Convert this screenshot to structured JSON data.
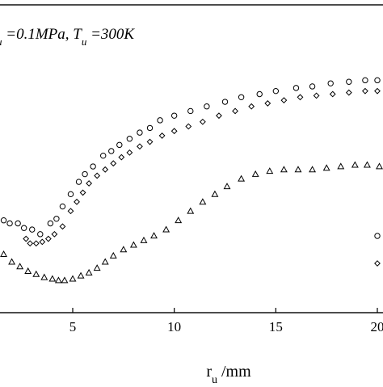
{
  "chart_data": {
    "type": "scatter",
    "annotation": {
      "parts": [
        {
          "text": "u",
          "sub": true
        },
        {
          "text": " =0.1MPa, T",
          "sub": false
        },
        {
          "text": "u",
          "sub": true
        },
        {
          "text": " =300K",
          "sub": false
        }
      ]
    },
    "xlabel": {
      "main": "r",
      "sub": "u",
      "suffix": " /mm"
    },
    "ylabel": "",
    "xlim": [
      1.5,
      20.3
    ],
    "ylim": [
      0,
      1
    ],
    "x_ticks": [
      5,
      10,
      15,
      20
    ],
    "x_tick_labels": [
      "5",
      "10",
      "15",
      "20"
    ],
    "grid": false,
    "legend": {
      "location": "right",
      "markers": [
        "circle",
        "diamond"
      ]
    },
    "series": [
      {
        "marker": "circle",
        "color": "#000000",
        "points": [
          [
            1.6,
            0.3
          ],
          [
            1.9,
            0.29
          ],
          [
            2.3,
            0.29
          ],
          [
            2.6,
            0.275
          ],
          [
            3.0,
            0.27
          ],
          [
            3.4,
            0.255
          ],
          [
            3.9,
            0.29
          ],
          [
            4.2,
            0.305
          ],
          [
            4.5,
            0.345
          ],
          [
            4.9,
            0.385
          ],
          [
            5.3,
            0.425
          ],
          [
            5.6,
            0.45
          ],
          [
            6.0,
            0.475
          ],
          [
            6.5,
            0.51
          ],
          [
            6.9,
            0.525
          ],
          [
            7.3,
            0.545
          ],
          [
            7.8,
            0.565
          ],
          [
            8.3,
            0.585
          ],
          [
            8.8,
            0.6
          ],
          [
            9.3,
            0.625
          ],
          [
            10.0,
            0.64
          ],
          [
            10.8,
            0.655
          ],
          [
            11.6,
            0.67
          ],
          [
            12.5,
            0.685
          ],
          [
            13.3,
            0.7
          ],
          [
            14.2,
            0.71
          ],
          [
            15.0,
            0.72
          ],
          [
            16.0,
            0.73
          ],
          [
            16.8,
            0.735
          ],
          [
            17.7,
            0.745
          ],
          [
            18.6,
            0.75
          ],
          [
            19.4,
            0.755
          ],
          [
            20.0,
            0.755
          ]
        ]
      },
      {
        "marker": "diamond",
        "color": "#000000",
        "points": [
          [
            2.7,
            0.24
          ],
          [
            2.9,
            0.225
          ],
          [
            3.2,
            0.225
          ],
          [
            3.5,
            0.23
          ],
          [
            3.8,
            0.24
          ],
          [
            4.1,
            0.255
          ],
          [
            4.5,
            0.28
          ],
          [
            4.9,
            0.33
          ],
          [
            5.2,
            0.36
          ],
          [
            5.5,
            0.39
          ],
          [
            5.8,
            0.42
          ],
          [
            6.2,
            0.445
          ],
          [
            6.6,
            0.465
          ],
          [
            7.0,
            0.485
          ],
          [
            7.4,
            0.505
          ],
          [
            7.8,
            0.52
          ],
          [
            8.3,
            0.54
          ],
          [
            8.8,
            0.555
          ],
          [
            9.4,
            0.575
          ],
          [
            10.0,
            0.59
          ],
          [
            10.7,
            0.605
          ],
          [
            11.4,
            0.62
          ],
          [
            12.2,
            0.64
          ],
          [
            13.0,
            0.655
          ],
          [
            13.8,
            0.67
          ],
          [
            14.6,
            0.68
          ],
          [
            15.4,
            0.69
          ],
          [
            16.2,
            0.7
          ],
          [
            17.0,
            0.705
          ],
          [
            17.8,
            0.71
          ],
          [
            18.6,
            0.715
          ],
          [
            19.4,
            0.72
          ],
          [
            20.0,
            0.72
          ]
        ]
      },
      {
        "marker": "triangle",
        "color": "#000000",
        "points": [
          [
            1.6,
            0.19
          ],
          [
            2.0,
            0.165
          ],
          [
            2.4,
            0.15
          ],
          [
            2.8,
            0.135
          ],
          [
            3.2,
            0.125
          ],
          [
            3.6,
            0.115
          ],
          [
            4.0,
            0.11
          ],
          [
            4.3,
            0.105
          ],
          [
            4.6,
            0.105
          ],
          [
            5.0,
            0.11
          ],
          [
            5.4,
            0.12
          ],
          [
            5.8,
            0.13
          ],
          [
            6.2,
            0.145
          ],
          [
            6.6,
            0.165
          ],
          [
            7.0,
            0.185
          ],
          [
            7.5,
            0.205
          ],
          [
            8.0,
            0.22
          ],
          [
            8.5,
            0.235
          ],
          [
            9.0,
            0.25
          ],
          [
            9.6,
            0.27
          ],
          [
            10.2,
            0.3
          ],
          [
            10.8,
            0.33
          ],
          [
            11.4,
            0.36
          ],
          [
            12.0,
            0.385
          ],
          [
            12.6,
            0.41
          ],
          [
            13.3,
            0.435
          ],
          [
            14.0,
            0.45
          ],
          [
            14.7,
            0.46
          ],
          [
            15.4,
            0.465
          ],
          [
            16.1,
            0.465
          ],
          [
            16.8,
            0.465
          ],
          [
            17.5,
            0.47
          ],
          [
            18.2,
            0.475
          ],
          [
            18.9,
            0.48
          ],
          [
            19.5,
            0.48
          ],
          [
            20.1,
            0.475
          ]
        ]
      }
    ]
  }
}
